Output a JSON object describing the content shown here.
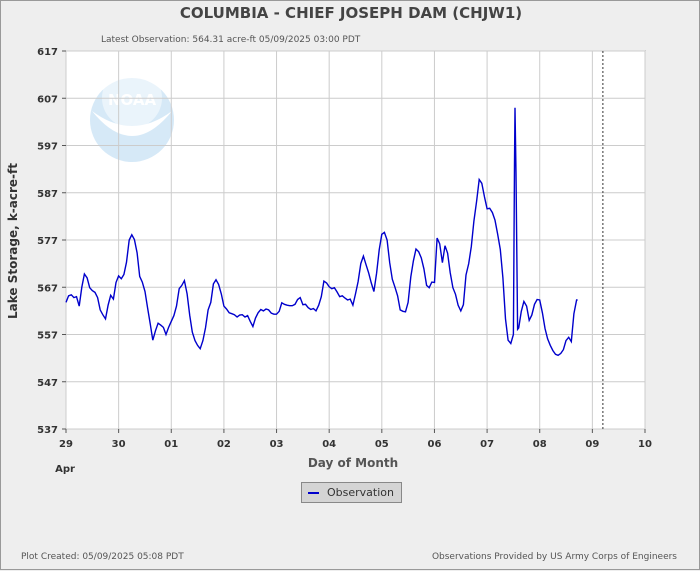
{
  "header": {
    "title": "COLUMBIA - CHIEF JOSEPH DAM  (CHJW1)",
    "latest_observation": "Latest Observation: 564.31 acre-ft 05/09/2025 03:00 PDT"
  },
  "footer": {
    "plot_created": "Plot Created: 05/09/2025 05:08 PDT",
    "provided_by": "Observations Provided by US Army Corps of Engineers"
  },
  "legend": {
    "observation_label": "Observation"
  },
  "watermark": {
    "text": "NOAA"
  },
  "colors": {
    "series": "#0000cc",
    "grid": "#cccccc",
    "plot_bg": "#ffffff",
    "page_bg": "#eeeeee"
  },
  "chart_data": {
    "type": "line",
    "xlabel": "Day of Month",
    "ylabel": "Lake Storage, k-acre-ft",
    "x_unit": "days since Apr 29 00:00",
    "xlim": [
      0,
      11
    ],
    "ylim": [
      537,
      617
    ],
    "yticks": [
      537,
      547,
      557,
      567,
      577,
      587,
      597,
      607,
      617
    ],
    "xtick_labels": [
      "29",
      "30",
      "01",
      "02",
      "03",
      "04",
      "05",
      "06",
      "07",
      "08",
      "09",
      "10"
    ],
    "month_label": "Apr",
    "grid": true,
    "latest_marker_x": 10.2,
    "series": [
      {
        "name": "Observation",
        "points": [
          [
            0.0,
            563.8
          ],
          [
            0.05,
            565.2
          ],
          [
            0.1,
            565.4
          ],
          [
            0.15,
            564.8
          ],
          [
            0.2,
            565.0
          ],
          [
            0.25,
            563.0
          ],
          [
            0.3,
            567.0
          ],
          [
            0.35,
            569.8
          ],
          [
            0.4,
            569.0
          ],
          [
            0.45,
            566.9
          ],
          [
            0.5,
            566.3
          ],
          [
            0.55,
            565.9
          ],
          [
            0.6,
            564.8
          ],
          [
            0.65,
            562.2
          ],
          [
            0.7,
            561.2
          ],
          [
            0.75,
            560.3
          ],
          [
            0.8,
            563.2
          ],
          [
            0.85,
            565.3
          ],
          [
            0.9,
            564.5
          ],
          [
            0.95,
            568.0
          ],
          [
            1.0,
            569.4
          ],
          [
            1.05,
            568.8
          ],
          [
            1.1,
            569.7
          ],
          [
            1.15,
            572.3
          ],
          [
            1.2,
            577.0
          ],
          [
            1.25,
            578.1
          ],
          [
            1.3,
            577.1
          ],
          [
            1.35,
            574.3
          ],
          [
            1.4,
            569.3
          ],
          [
            1.45,
            568.1
          ],
          [
            1.5,
            566.1
          ],
          [
            1.55,
            562.6
          ],
          [
            1.6,
            559.3
          ],
          [
            1.65,
            555.8
          ],
          [
            1.7,
            557.8
          ],
          [
            1.75,
            559.4
          ],
          [
            1.8,
            559.0
          ],
          [
            1.85,
            558.5
          ],
          [
            1.9,
            557.0
          ],
          [
            1.95,
            558.5
          ],
          [
            2.0,
            559.8
          ],
          [
            2.05,
            561.0
          ],
          [
            2.1,
            563.0
          ],
          [
            2.15,
            566.7
          ],
          [
            2.2,
            567.4
          ],
          [
            2.25,
            568.4
          ],
          [
            2.3,
            565.6
          ],
          [
            2.35,
            561.1
          ],
          [
            2.4,
            557.5
          ],
          [
            2.45,
            555.7
          ],
          [
            2.5,
            554.7
          ],
          [
            2.55,
            554.0
          ],
          [
            2.6,
            555.7
          ],
          [
            2.65,
            558.4
          ],
          [
            2.7,
            562.2
          ],
          [
            2.75,
            563.8
          ],
          [
            2.8,
            567.7
          ],
          [
            2.85,
            568.6
          ],
          [
            2.9,
            567.6
          ],
          [
            2.95,
            565.6
          ],
          [
            3.0,
            563.0
          ],
          [
            3.05,
            562.4
          ],
          [
            3.1,
            561.6
          ],
          [
            3.15,
            561.4
          ],
          [
            3.2,
            561.2
          ],
          [
            3.25,
            560.7
          ],
          [
            3.3,
            561.1
          ],
          [
            3.35,
            561.2
          ],
          [
            3.4,
            560.7
          ],
          [
            3.45,
            561.0
          ],
          [
            3.5,
            559.8
          ],
          [
            3.55,
            558.7
          ],
          [
            3.6,
            560.5
          ],
          [
            3.65,
            561.6
          ],
          [
            3.7,
            562.3
          ],
          [
            3.75,
            562.0
          ],
          [
            3.8,
            562.4
          ],
          [
            3.85,
            562.2
          ],
          [
            3.9,
            561.5
          ],
          [
            3.95,
            561.3
          ],
          [
            4.0,
            561.3
          ],
          [
            4.05,
            561.9
          ],
          [
            4.1,
            563.7
          ],
          [
            4.15,
            563.4
          ],
          [
            4.2,
            563.2
          ],
          [
            4.25,
            563.1
          ],
          [
            4.3,
            563.1
          ],
          [
            4.35,
            563.4
          ],
          [
            4.4,
            564.4
          ],
          [
            4.45,
            564.8
          ],
          [
            4.5,
            563.3
          ],
          [
            4.55,
            563.4
          ],
          [
            4.6,
            562.7
          ],
          [
            4.65,
            562.3
          ],
          [
            4.7,
            562.5
          ],
          [
            4.75,
            562.0
          ],
          [
            4.8,
            563.2
          ],
          [
            4.85,
            565.0
          ],
          [
            4.9,
            568.3
          ],
          [
            4.95,
            567.9
          ],
          [
            5.0,
            567.1
          ],
          [
            5.05,
            566.7
          ],
          [
            5.1,
            566.9
          ],
          [
            5.15,
            566.0
          ],
          [
            5.2,
            565.0
          ],
          [
            5.25,
            565.2
          ],
          [
            5.3,
            564.7
          ],
          [
            5.35,
            564.3
          ],
          [
            5.4,
            564.5
          ],
          [
            5.45,
            563.2
          ],
          [
            5.5,
            565.6
          ],
          [
            5.55,
            568.2
          ],
          [
            5.6,
            572.0
          ],
          [
            5.65,
            573.6
          ],
          [
            5.7,
            571.8
          ],
          [
            5.75,
            570.0
          ],
          [
            5.8,
            567.9
          ],
          [
            5.85,
            566.1
          ],
          [
            5.9,
            570.0
          ],
          [
            5.95,
            574.9
          ],
          [
            6.0,
            578.2
          ],
          [
            6.05,
            578.6
          ],
          [
            6.1,
            577.0
          ],
          [
            6.15,
            572.2
          ],
          [
            6.2,
            568.7
          ],
          [
            6.25,
            567.0
          ],
          [
            6.3,
            565.2
          ],
          [
            6.35,
            562.2
          ],
          [
            6.4,
            561.9
          ],
          [
            6.45,
            561.8
          ],
          [
            6.5,
            563.8
          ],
          [
            6.55,
            569.2
          ],
          [
            6.6,
            572.6
          ],
          [
            6.65,
            575.1
          ],
          [
            6.7,
            574.5
          ],
          [
            6.75,
            573.2
          ],
          [
            6.8,
            570.9
          ],
          [
            6.85,
            567.4
          ],
          [
            6.9,
            566.9
          ],
          [
            6.95,
            568.1
          ],
          [
            7.0,
            568.0
          ],
          [
            7.05,
            577.4
          ],
          [
            7.1,
            576.2
          ],
          [
            7.15,
            572.2
          ],
          [
            7.2,
            575.8
          ],
          [
            7.25,
            574.2
          ],
          [
            7.3,
            570.1
          ],
          [
            7.35,
            566.9
          ],
          [
            7.4,
            565.5
          ],
          [
            7.45,
            563.2
          ],
          [
            7.5,
            562.0
          ],
          [
            7.55,
            563.3
          ],
          [
            7.6,
            569.6
          ],
          [
            7.65,
            572.0
          ],
          [
            7.7,
            575.6
          ],
          [
            7.75,
            581.0
          ],
          [
            7.8,
            585.2
          ],
          [
            7.85,
            589.8
          ],
          [
            7.9,
            589.0
          ],
          [
            7.95,
            586.1
          ],
          [
            8.0,
            583.6
          ],
          [
            8.05,
            583.7
          ],
          [
            8.1,
            582.8
          ],
          [
            8.15,
            581.2
          ],
          [
            8.2,
            578.3
          ],
          [
            8.25,
            575.0
          ],
          [
            8.3,
            569.0
          ],
          [
            8.35,
            560.3
          ],
          [
            8.4,
            555.8
          ],
          [
            8.45,
            555.1
          ],
          [
            8.5,
            557.0
          ],
          [
            8.52,
            593.2
          ],
          [
            8.53,
            605.0
          ],
          [
            8.55,
            591.2
          ],
          [
            8.58,
            558.1
          ],
          [
            8.6,
            558.4
          ],
          [
            8.65,
            561.9
          ],
          [
            8.7,
            564.0
          ],
          [
            8.75,
            563.0
          ],
          [
            8.8,
            560.0
          ],
          [
            8.85,
            561.1
          ],
          [
            8.9,
            563.4
          ],
          [
            8.95,
            564.4
          ],
          [
            9.0,
            564.3
          ],
          [
            9.05,
            561.6
          ],
          [
            9.1,
            558.3
          ],
          [
            9.15,
            556.1
          ],
          [
            9.2,
            554.7
          ],
          [
            9.25,
            553.6
          ],
          [
            9.3,
            552.8
          ],
          [
            9.35,
            552.6
          ],
          [
            9.4,
            553.0
          ],
          [
            9.45,
            553.8
          ],
          [
            9.5,
            555.7
          ],
          [
            9.55,
            556.4
          ],
          [
            9.6,
            555.5
          ],
          [
            9.65,
            561.4
          ],
          [
            9.7,
            564.3
          ],
          [
            9.72,
            564.3
          ]
        ]
      }
    ]
  }
}
